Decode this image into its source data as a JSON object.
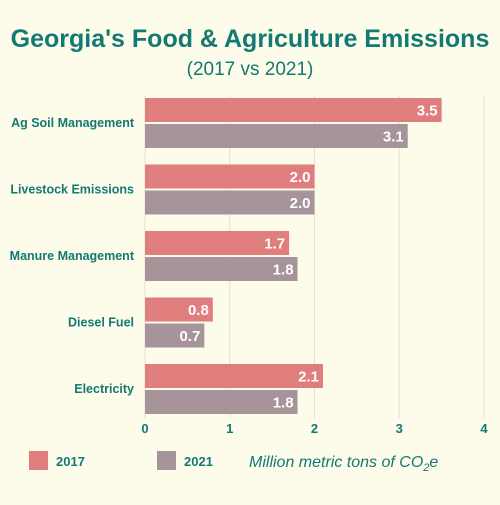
{
  "chart_data": {
    "type": "bar",
    "orientation": "horizontal",
    "title": "Georgia's Food & Agriculture Emissions",
    "subtitle": "(2017 vs 2021)",
    "categories": [
      "Ag Soil Management",
      "Livestock Emissions",
      "Manure Management",
      "Diesel Fuel",
      "Electricity"
    ],
    "series": [
      {
        "name": "2017",
        "color": "#e07d7d",
        "values": [
          3.5,
          2.0,
          1.7,
          0.8,
          2.1
        ],
        "labels": [
          "3.5",
          "2.0",
          "1.7",
          "0.8",
          "2.1"
        ]
      },
      {
        "name": "2021",
        "color": "#a6949a",
        "values": [
          3.1,
          2.0,
          1.8,
          0.7,
          1.8
        ],
        "labels": [
          "3.1",
          "2.0",
          "1.8",
          "0.7",
          "1.8"
        ]
      }
    ],
    "xlim": [
      0,
      4
    ],
    "xticks": [
      "0",
      "1",
      "2",
      "3",
      "4"
    ],
    "xlabel_prefix": "Million metric tons of CO",
    "xlabel_sub": "2",
    "xlabel_suffix": "e",
    "grid": true,
    "legend": "bottom-left",
    "colors": {
      "text": "#127a73",
      "background": "#fdfbe9",
      "grid": "#e3e2cf",
      "bar_label": "#ffffff"
    }
  }
}
